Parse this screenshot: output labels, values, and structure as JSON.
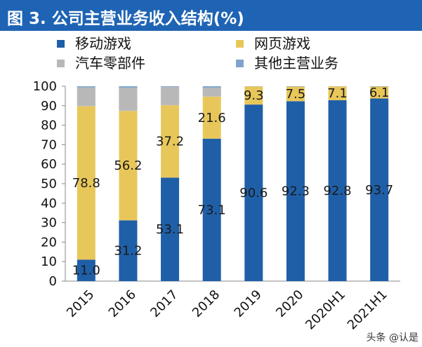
{
  "title": "图 3. 公司主营业务收入结构(%)",
  "watermark": "头条 @认是",
  "colors": {
    "mobile": "#1f5fa8",
    "web": "#e8c75a",
    "auto": "#b8b8b8",
    "other": "#7fa4cc",
    "title_bg": "#1f64b4"
  },
  "chart_data": {
    "type": "bar",
    "stacked": true,
    "title": "公司主营业务收入结构(%)",
    "xlabel": "",
    "ylabel": "",
    "ylim": [
      0,
      100
    ],
    "yticks": [
      0,
      10,
      20,
      30,
      40,
      50,
      60,
      70,
      80,
      90,
      100
    ],
    "grid": false,
    "legend_position": "top",
    "categories": [
      "2015",
      "2016",
      "2017",
      "2018",
      "2019",
      "2020",
      "2020H1",
      "2021H1"
    ],
    "series": [
      {
        "name": "移动游戏",
        "key": "mobile",
        "values": [
          11.0,
          31.2,
          53.1,
          73.1,
          90.6,
          92.3,
          92.8,
          93.7
        ],
        "labels": [
          "11.0",
          "31.2",
          "53.1",
          "73.1",
          "90.6",
          "92.3",
          "92.8",
          "93.7"
        ]
      },
      {
        "name": "网页游戏",
        "key": "web",
        "values": [
          78.8,
          56.2,
          37.2,
          21.6,
          9.3,
          7.5,
          7.1,
          6.1
        ],
        "labels": [
          "78.8",
          "56.2",
          "37.2",
          "21.6",
          "9.3",
          "7.5",
          "7.1",
          "6.1"
        ]
      },
      {
        "name": "汽车零部件",
        "key": "auto",
        "values": [
          9.6,
          11.9,
          9.3,
          4.6,
          0.0,
          0.0,
          0.0,
          0.0
        ],
        "labels": []
      },
      {
        "name": "其他主营业务",
        "key": "other",
        "values": [
          0.6,
          0.7,
          0.4,
          0.7,
          0.1,
          0.2,
          0.1,
          0.2
        ],
        "labels": []
      }
    ]
  }
}
